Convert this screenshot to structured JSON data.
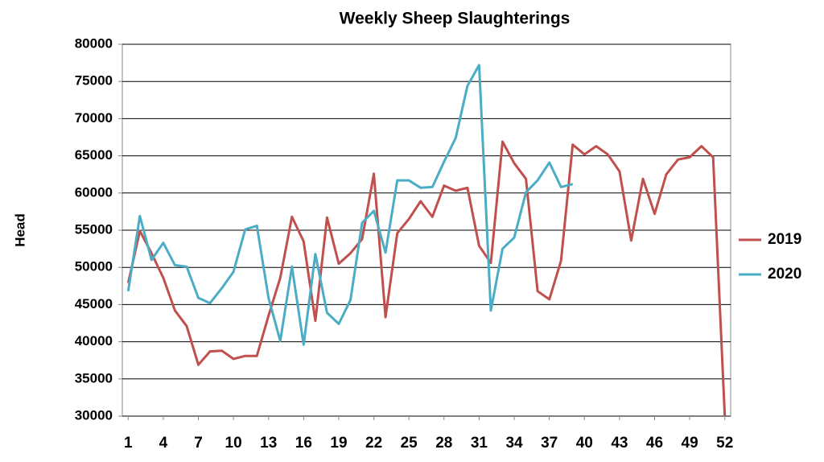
{
  "chart_data": {
    "type": "line",
    "title": "Weekly Sheep Slaughterings",
    "y_label": "Head",
    "x": [
      1,
      2,
      3,
      4,
      5,
      6,
      7,
      8,
      9,
      10,
      11,
      12,
      13,
      14,
      15,
      16,
      17,
      18,
      19,
      20,
      21,
      22,
      23,
      24,
      25,
      26,
      27,
      28,
      29,
      30,
      31,
      32,
      33,
      34,
      35,
      36,
      37,
      38,
      39,
      40,
      41,
      42,
      43,
      44,
      45,
      46,
      47,
      48,
      49,
      50,
      51,
      52
    ],
    "xlim": [
      0.5,
      52.5
    ],
    "xticks": [
      1,
      4,
      7,
      10,
      13,
      16,
      19,
      22,
      25,
      28,
      31,
      34,
      37,
      40,
      43,
      46,
      49,
      52
    ],
    "ylim": [
      30000,
      80000
    ],
    "yticks": [
      30000,
      35000,
      40000,
      45000,
      50000,
      55000,
      60000,
      65000,
      70000,
      75000,
      80000
    ],
    "grid": true,
    "legend": "right",
    "series": [
      {
        "name": "2019",
        "color": "#c0504d",
        "values": [
          47900,
          54900,
          51900,
          48600,
          44200,
          42100,
          36900,
          38700,
          38800,
          37700,
          38100,
          38100,
          43500,
          48600,
          56800,
          53500,
          42800,
          56700,
          50500,
          51900,
          53800,
          62600,
          43300,
          54600,
          56500,
          58900,
          56800,
          61000,
          60300,
          60700,
          52900,
          50600,
          66900,
          64000,
          61900,
          46800,
          45700,
          50900,
          66500,
          65200,
          66300,
          65200,
          62900,
          53600,
          61900,
          57200,
          62500,
          64500,
          64800,
          66300,
          64800,
          30000
        ]
      },
      {
        "name": "2020",
        "color": "#4bacc6",
        "values": [
          46800,
          56900,
          51000,
          53300,
          50300,
          50100,
          45900,
          45200,
          47200,
          49400,
          55100,
          55600,
          45900,
          40100,
          50100,
          39600,
          51800,
          43900,
          42400,
          45600,
          56000,
          57600,
          52000,
          61700,
          61700,
          60700,
          60800,
          64200,
          67400,
          74400,
          77200,
          44200,
          52500,
          54000,
          60100,
          61700,
          64100,
          60800,
          61200,
          null,
          null,
          null,
          null,
          null,
          null,
          null,
          null,
          null,
          null,
          null,
          null,
          null
        ]
      }
    ]
  }
}
